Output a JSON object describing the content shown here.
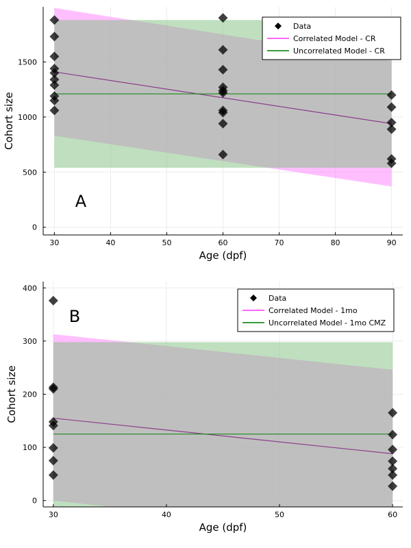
{
  "chart_data": [
    {
      "type": "scatter",
      "panel_label": "A",
      "xlabel": "Age (dpf)",
      "ylabel": "Cohort size",
      "xlim": [
        28,
        92
      ],
      "ylim": [
        -70,
        2000
      ],
      "xticks": [
        30,
        40,
        50,
        60,
        70,
        80,
        90
      ],
      "yticks": [
        0,
        500,
        1000,
        1500
      ],
      "grid": true,
      "legend_position": "top-right",
      "legend": [
        "Data",
        "Correlated Model - CR",
        "Uncorrelated Model - CR"
      ],
      "series": [
        {
          "name": "Data",
          "kind": "points",
          "marker": "diamond",
          "color": "#000000",
          "points": [
            [
              30,
              1880
            ],
            [
              30,
              1730
            ],
            [
              30,
              1550
            ],
            [
              30,
              1440
            ],
            [
              30,
              1400
            ],
            [
              30,
              1340
            ],
            [
              30,
              1290
            ],
            [
              30,
              1190
            ],
            [
              30,
              1150
            ],
            [
              30,
              1060
            ],
            [
              60,
              1900
            ],
            [
              60,
              1610
            ],
            [
              60,
              1430
            ],
            [
              60,
              1270
            ],
            [
              60,
              1240
            ],
            [
              60,
              1220
            ],
            [
              60,
              1060
            ],
            [
              60,
              1040
            ],
            [
              60,
              940
            ],
            [
              60,
              660
            ],
            [
              90,
              1200
            ],
            [
              90,
              1090
            ],
            [
              90,
              950
            ],
            [
              90,
              890
            ],
            [
              90,
              620
            ],
            [
              90,
              580
            ]
          ]
        },
        {
          "name": "Correlated Model - CR",
          "kind": "line_band",
          "color": "#ff80ff",
          "line_color": "#8b3d8b",
          "x": [
            30,
            90
          ],
          "mean": [
            1410,
            940
          ],
          "lower": [
            830,
            370
          ],
          "upper": [
            1990,
            1510
          ]
        },
        {
          "name": "Uncorrelated Model - CR",
          "kind": "line_band",
          "color": "#80c080",
          "line_color": "#1a8a1a",
          "x": [
            30,
            90
          ],
          "mean": [
            1210,
            1210
          ],
          "lower": [
            540,
            540
          ],
          "upper": [
            1880,
            1880
          ]
        }
      ]
    },
    {
      "type": "scatter",
      "panel_label": "B",
      "xlabel": "Age (dpf)",
      "ylabel": "Cohort size",
      "xlim": [
        29.1,
        60.9
      ],
      "ylim": [
        -12,
        412
      ],
      "xticks": [
        30,
        40,
        50,
        60
      ],
      "yticks": [
        0,
        100,
        200,
        300,
        400
      ],
      "grid": true,
      "legend_position": "top-right",
      "legend": [
        "Data",
        "Correlated Model - 1mo",
        "Uncorrelated Model - 1mo CMZ"
      ],
      "series": [
        {
          "name": "Data",
          "kind": "points",
          "marker": "diamond",
          "color": "#000000",
          "points": [
            [
              30,
              376
            ],
            [
              30,
              213
            ],
            [
              30,
              210
            ],
            [
              30,
              148
            ],
            [
              30,
              141
            ],
            [
              30,
              99
            ],
            [
              30,
              75
            ],
            [
              30,
              48
            ],
            [
              60,
              165
            ],
            [
              60,
              124
            ],
            [
              60,
              96
            ],
            [
              60,
              74
            ],
            [
              60,
              60
            ],
            [
              60,
              48
            ],
            [
              60,
              27
            ]
          ]
        },
        {
          "name": "Correlated Model - 1mo",
          "kind": "line_band",
          "color": "#ff80ff",
          "line_color": "#8b3d8b",
          "x": [
            30,
            60
          ],
          "mean": [
            155,
            88
          ],
          "lower": [
            0,
            -70
          ],
          "upper": [
            313,
            246
          ]
        },
        {
          "name": "Uncorrelated Model - 1mo CMZ",
          "kind": "line_band",
          "color": "#80c080",
          "line_color": "#1a8a1a",
          "x": [
            30,
            60
          ],
          "mean": [
            125,
            125
          ],
          "lower": [
            -48,
            -48
          ],
          "upper": [
            298,
            298
          ]
        }
      ]
    }
  ]
}
